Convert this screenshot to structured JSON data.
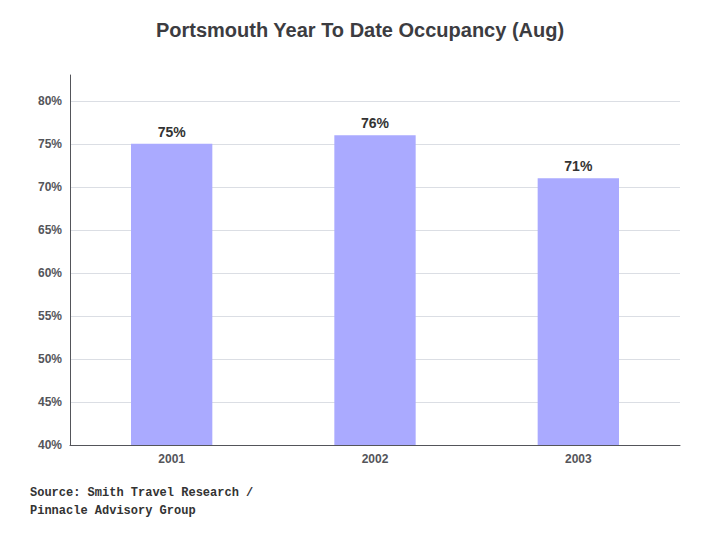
{
  "chart_data": {
    "type": "bar",
    "title": "Portsmouth Year To Date Occupancy (Aug)",
    "categories": [
      "2001",
      "2002",
      "2003"
    ],
    "values": [
      75,
      76,
      71
    ],
    "value_labels": [
      "75%",
      "76%",
      "71%"
    ],
    "data_labels": true,
    "color": "#aaaaff",
    "ylim": [
      40,
      83
    ],
    "yticks": [
      {
        "value": 40,
        "label": "40%"
      },
      {
        "value": 45,
        "label": "45%"
      },
      {
        "value": 50,
        "label": "50%"
      },
      {
        "value": 55,
        "label": "55%"
      },
      {
        "value": 60,
        "label": "60%"
      },
      {
        "value": 65,
        "label": "65%"
      },
      {
        "value": 70,
        "label": "70%"
      },
      {
        "value": 75,
        "label": "75%"
      },
      {
        "value": 80,
        "label": "80%"
      }
    ],
    "grid": true,
    "annotation": "Source: Smith Travel Research /\nPinnacle Advisory Group"
  }
}
